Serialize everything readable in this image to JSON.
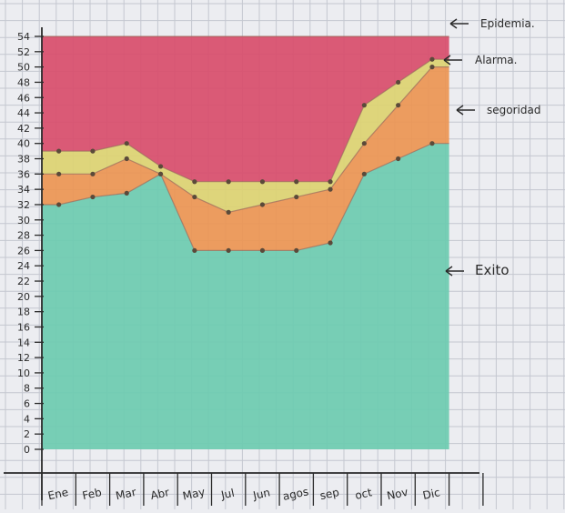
{
  "chart_data": {
    "type": "area",
    "categories": [
      "Ene",
      "Feb",
      "Mar",
      "Abr",
      "May",
      "Jul",
      "Jun",
      "agos",
      "sep",
      "oct",
      "Nov",
      "Dic"
    ],
    "series": [
      {
        "name": "Exito",
        "values": [
          32,
          33,
          33.5,
          36,
          26,
          26,
          26,
          26,
          27,
          36,
          38,
          40
        ]
      },
      {
        "name": "segoridad",
        "values": [
          36,
          36,
          38,
          36,
          33,
          31,
          32,
          33,
          34,
          40,
          45,
          50
        ]
      },
      {
        "name": "Alarma",
        "values": [
          39,
          39,
          40,
          37,
          35,
          35,
          35,
          35,
          35,
          45,
          48,
          51
        ]
      },
      {
        "name": "Epidemia",
        "values": [
          54,
          54,
          54,
          54,
          54,
          54,
          54,
          54,
          54,
          54,
          54,
          54
        ]
      }
    ],
    "ylim": [
      0,
      54
    ],
    "yticks": [
      0,
      2,
      4,
      6,
      8,
      10,
      12,
      14,
      16,
      18,
      20,
      22,
      24,
      26,
      28,
      30,
      32,
      34,
      36,
      38,
      40,
      42,
      44,
      46,
      48,
      50,
      52,
      54
    ],
    "ytick_labels": [
      "0",
      "2",
      "4",
      "6",
      "8",
      "10",
      "12",
      "14",
      "16",
      "18",
      "20",
      "22",
      "24",
      "26",
      "28",
      "30",
      "32",
      "34",
      "36",
      "38",
      "40",
      "42",
      "44",
      "46",
      "48",
      "50",
      "52",
      "54"
    ],
    "annotations": [
      "Epidemia.",
      "Alarma.",
      "segoridad",
      "Exito"
    ],
    "colors": {
      "Exito": "#6dcbb0",
      "segoridad": "#ec9552",
      "Alarma": "#dcd271",
      "Epidemia": "#d84d6b",
      "points": "#5b4a3a",
      "grid": "#c4c7d0",
      "paper": "#ecedf1",
      "ink": "#2a2a2a"
    },
    "grid": true,
    "legend": "right-side arrows"
  }
}
